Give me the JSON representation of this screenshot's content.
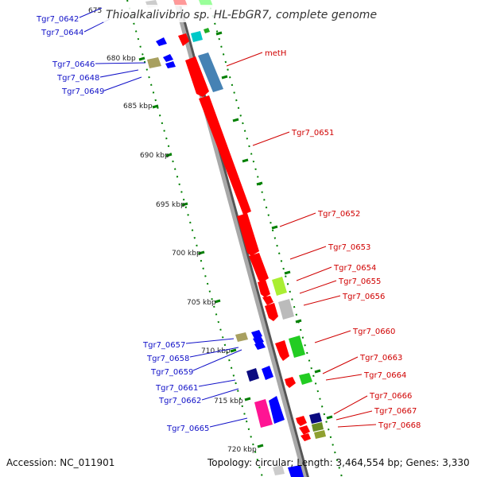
{
  "title": "Thioalkalivibrio sp. HL-EbGR7, complete genome",
  "footer": {
    "accession": "Accession: NC_011901",
    "topology": "Topology: circular; Length: 3,464,554 bp; Genes: 3,330"
  },
  "ticks": [
    "675",
    "680 kbp",
    "685 kbp",
    "690 kbp",
    "695 kbp",
    "700 kbp",
    "705 kbp",
    "710 kbp",
    "715 kbp",
    "720 kbp"
  ],
  "blue_labels": [
    "Tgr7_0642",
    "Tgr7_0644",
    "Tgr7_0646",
    "Tgr7_0648",
    "Tgr7_0649",
    "Tgr7_0657",
    "Tgr7_0658",
    "Tgr7_0659",
    "Tgr7_0661",
    "Tgr7_0662",
    "Tgr7_0665"
  ],
  "red_labels": [
    "metH",
    "Tgr7_0651",
    "Tgr7_0652",
    "Tgr7_0653",
    "Tgr7_0654",
    "Tgr7_0655",
    "Tgr7_0656",
    "Tgr7_0660",
    "Tgr7_0663",
    "Tgr7_0664",
    "Tgr7_0666",
    "Tgr7_0667",
    "Tgr7_0668"
  ],
  "colors": {
    "forward_gene": "#ff0000",
    "reverse_gene": "#0000ff",
    "backbone": "#999999",
    "tick": "#008000",
    "label_blue": "#1010c8",
    "label_red": "#d00000"
  }
}
